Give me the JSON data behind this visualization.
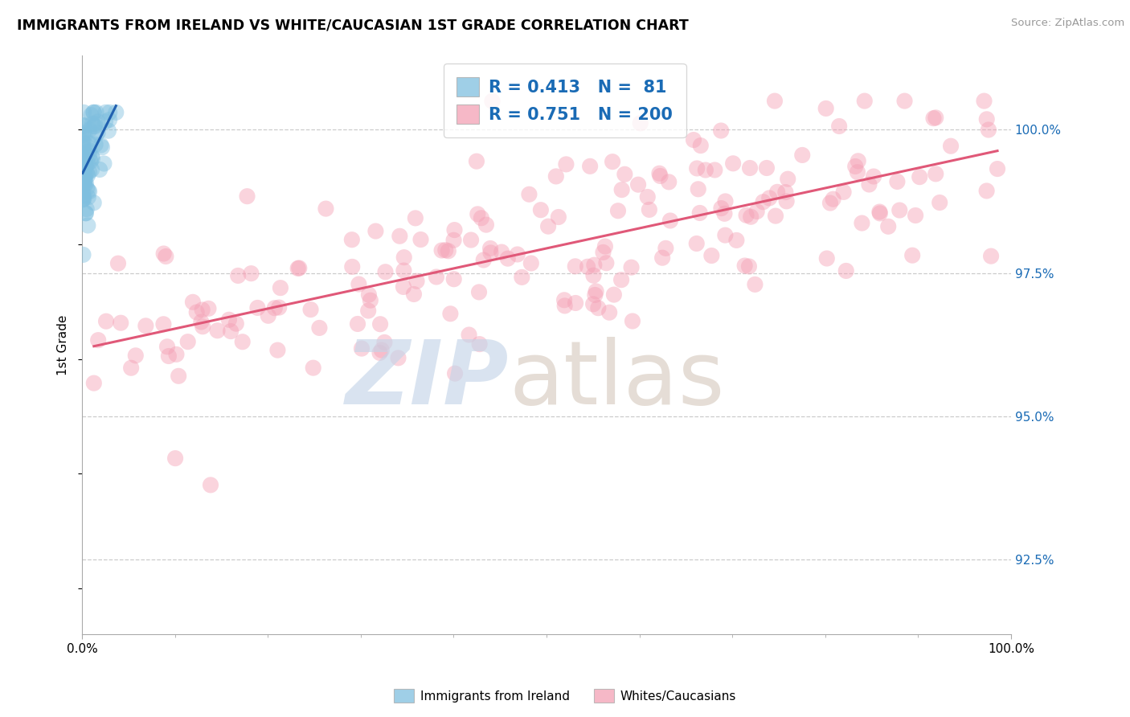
{
  "title": "IMMIGRANTS FROM IRELAND VS WHITE/CAUCASIAN 1ST GRADE CORRELATION CHART",
  "source": "Source: ZipAtlas.com",
  "ylabel": "1st Grade",
  "ylabel_right_ticks": [
    92.5,
    95.0,
    97.5,
    100.0
  ],
  "legend_blue_label": "Immigrants from Ireland",
  "legend_pink_label": "Whites/Caucasians",
  "R_blue": 0.413,
  "N_blue": 81,
  "R_pink": 0.751,
  "N_pink": 200,
  "blue_color": "#7fbfdf",
  "pink_color": "#f4a0b5",
  "blue_line_color": "#2060b0",
  "pink_line_color": "#e05878",
  "annotation_color": "#1a6bb5",
  "watermark_zip_color": "#c5d5e8",
  "watermark_atlas_color": "#d8ccc0",
  "xmin": 0.0,
  "xmax": 100.0,
  "ymin": 91.2,
  "ymax": 101.3,
  "grid_color": "#cccccc",
  "axis_color": "#aaaaaa",
  "blue_seed": 42,
  "pink_seed": 123
}
